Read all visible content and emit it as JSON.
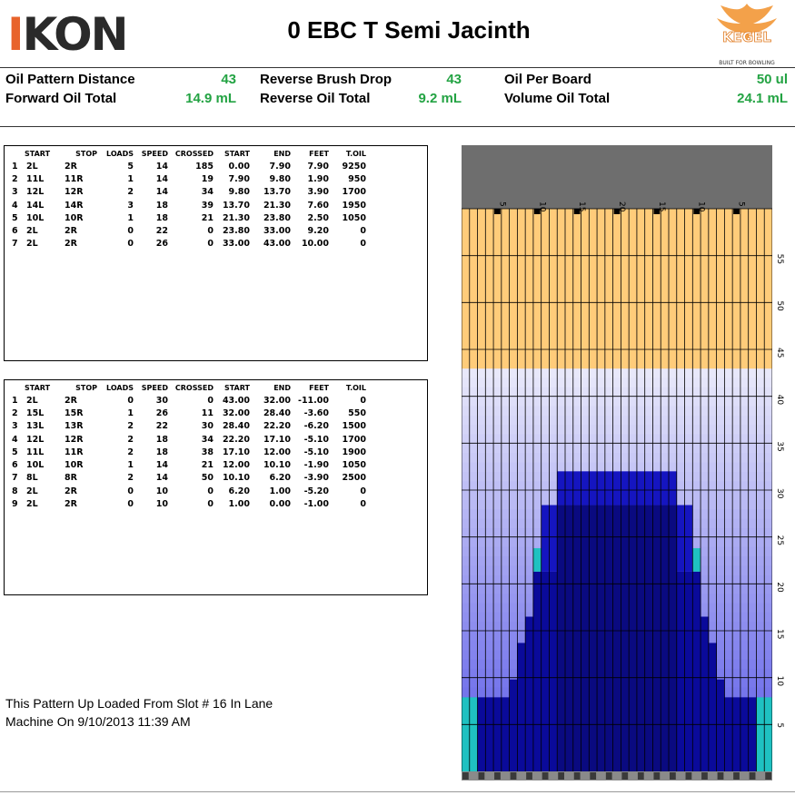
{
  "header": {
    "logo_text": "IKON",
    "title": "0 EBC T Semi Jacinth",
    "brand_logo": "KEGEL",
    "brand_tagline": "BUILT FOR BOWLING"
  },
  "stats": [
    {
      "label": "Oil Pattern Distance",
      "value": "43"
    },
    {
      "label": "Forward Oil Total",
      "value": "14.9 mL"
    },
    {
      "label": "Reverse Brush Drop",
      "value": "43"
    },
    {
      "label": "Reverse Oil Total",
      "value": "9.2 mL"
    },
    {
      "label": "Oil Per Board",
      "value": "50 ul"
    },
    {
      "label": "Volume Oil Total",
      "value": "24.1 mL"
    }
  ],
  "forward_table": {
    "headers": [
      "",
      "START",
      "STOP",
      "LOADS",
      "SPEED",
      "CROSSED",
      "START",
      "END",
      "FEET",
      "T.OIL"
    ],
    "rows": [
      [
        "1",
        "2L",
        "2R",
        "5",
        "14",
        "185",
        "0.00",
        "7.90",
        "7.90",
        "9250"
      ],
      [
        "2",
        "11L",
        "11R",
        "1",
        "14",
        "19",
        "7.90",
        "9.80",
        "1.90",
        "950"
      ],
      [
        "3",
        "12L",
        "12R",
        "2",
        "14",
        "34",
        "9.80",
        "13.70",
        "3.90",
        "1700"
      ],
      [
        "4",
        "14L",
        "14R",
        "3",
        "18",
        "39",
        "13.70",
        "21.30",
        "7.60",
        "1950"
      ],
      [
        "5",
        "10L",
        "10R",
        "1",
        "18",
        "21",
        "21.30",
        "23.80",
        "2.50",
        "1050"
      ],
      [
        "6",
        "2L",
        "2R",
        "0",
        "22",
        "0",
        "23.80",
        "33.00",
        "9.20",
        "0"
      ],
      [
        "7",
        "2L",
        "2R",
        "0",
        "26",
        "0",
        "33.00",
        "43.00",
        "10.00",
        "0"
      ]
    ]
  },
  "reverse_table": {
    "headers": [
      "",
      "START",
      "STOP",
      "LOADS",
      "SPEED",
      "CROSSED",
      "START",
      "END",
      "FEET",
      "T.OIL"
    ],
    "rows": [
      [
        "1",
        "2L",
        "2R",
        "0",
        "30",
        "0",
        "43.00",
        "32.00",
        "-11.00",
        "0"
      ],
      [
        "2",
        "15L",
        "15R",
        "1",
        "26",
        "11",
        "32.00",
        "28.40",
        "-3.60",
        "550"
      ],
      [
        "3",
        "13L",
        "13R",
        "2",
        "22",
        "30",
        "28.40",
        "22.20",
        "-6.20",
        "1500"
      ],
      [
        "4",
        "12L",
        "12R",
        "2",
        "18",
        "34",
        "22.20",
        "17.10",
        "-5.10",
        "1700"
      ],
      [
        "5",
        "11L",
        "11R",
        "2",
        "18",
        "38",
        "17.10",
        "12.00",
        "-5.10",
        "1900"
      ],
      [
        "6",
        "10L",
        "10R",
        "1",
        "14",
        "21",
        "12.00",
        "10.10",
        "-1.90",
        "1050"
      ],
      [
        "7",
        "8L",
        "8R",
        "2",
        "14",
        "50",
        "10.10",
        "6.20",
        "-3.90",
        "2500"
      ],
      [
        "8",
        "2L",
        "2R",
        "0",
        "10",
        "0",
        "6.20",
        "1.00",
        "-5.20",
        "0"
      ],
      [
        "9",
        "2L",
        "2R",
        "0",
        "10",
        "0",
        "1.00",
        "0.00",
        "-1.00",
        "0"
      ]
    ]
  },
  "note": {
    "line1": "This Pattern Up Loaded From Slot # 16 In Lane",
    "line2": "Machine On 9/10/2013 11:39 AM"
  },
  "lane_graph": {
    "board_labels": [
      "5",
      "10",
      "15",
      "20",
      "15",
      "10",
      "5"
    ],
    "distance_labels": [
      "55",
      "50",
      "45",
      "40",
      "35",
      "30",
      "25",
      "20",
      "15",
      "10",
      "5"
    ],
    "max_feet": 60,
    "colors": {
      "dry": "#ffcc7a",
      "light": "#e8e8fa",
      "header": "#6e6e6e",
      "teal": "#1fc1c1",
      "dark": "#0a0a90",
      "mid": "#1515c0",
      "accent": "#23a343"
    }
  }
}
